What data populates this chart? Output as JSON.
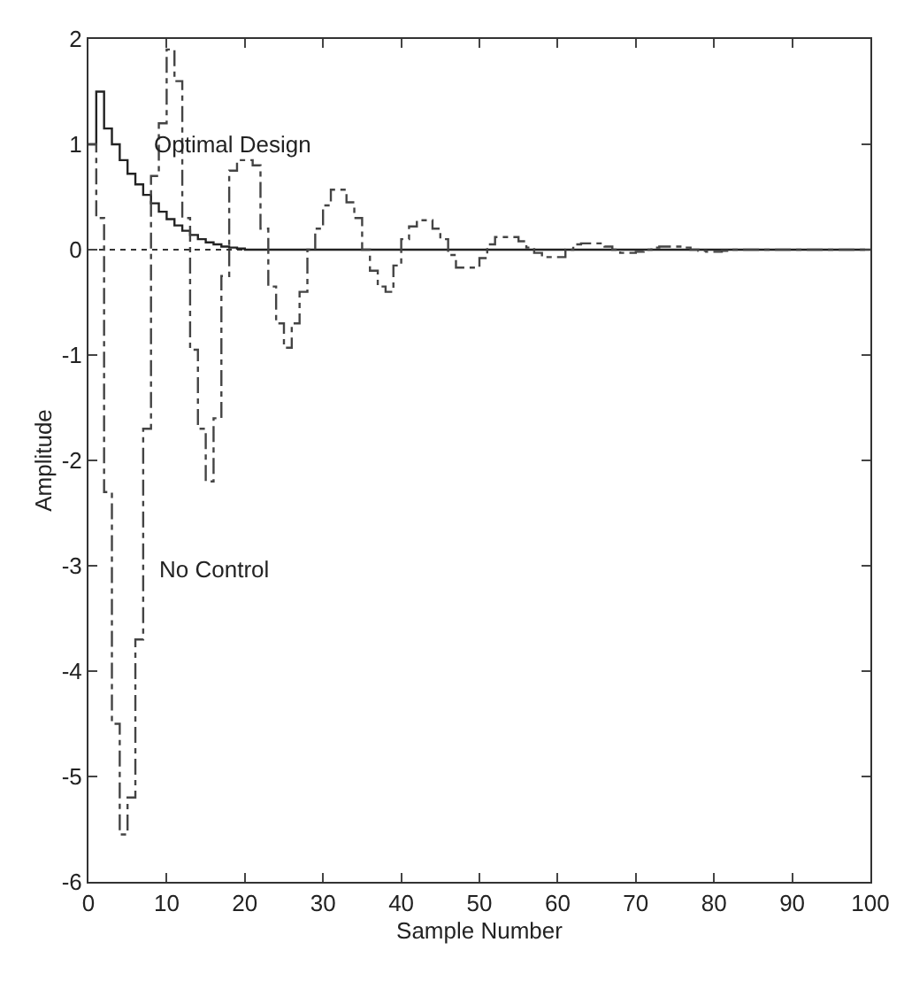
{
  "chart_data": {
    "type": "step",
    "xlabel": "Sample Number",
    "ylabel": "Amplitude",
    "x": [
      0,
      1,
      2,
      3,
      4,
      5,
      6,
      7,
      8,
      9,
      10,
      11,
      12,
      13,
      14,
      15,
      16,
      17,
      18,
      19,
      20,
      21,
      22,
      23,
      24,
      25,
      26,
      27,
      28,
      29,
      30,
      31,
      32,
      33,
      34,
      35,
      36,
      37,
      38,
      39,
      40,
      41,
      42,
      43,
      44,
      45,
      46,
      47,
      48,
      49,
      50,
      51,
      52,
      53,
      54,
      55,
      56,
      57,
      58,
      59,
      60,
      61,
      62,
      63,
      64,
      65,
      66,
      67,
      68,
      69,
      70,
      71,
      72,
      73,
      74,
      75,
      76,
      77,
      78,
      79,
      80,
      81,
      82,
      83,
      84,
      85,
      86,
      87,
      88,
      89,
      90,
      91,
      92,
      93,
      94,
      95,
      96,
      97,
      98,
      99,
      100
    ],
    "series": [
      {
        "color": "#222222",
        "line_style": "solid",
        "values": [
          1.0,
          1.5,
          1.15,
          1.0,
          0.85,
          0.72,
          0.62,
          0.52,
          0.44,
          0.36,
          0.29,
          0.23,
          0.18,
          0.14,
          0.1,
          0.07,
          0.05,
          0.03,
          0.02,
          0.01,
          0,
          0,
          0,
          0,
          0,
          0,
          0,
          0,
          0,
          0,
          0,
          0,
          0,
          0,
          0,
          0,
          0,
          0,
          0,
          0,
          0,
          0,
          0,
          0,
          0,
          0,
          0,
          0,
          0,
          0,
          0,
          0,
          0,
          0,
          0,
          0,
          0,
          0,
          0,
          0,
          0,
          0,
          0,
          0,
          0,
          0,
          0,
          0,
          0,
          0,
          0,
          0,
          0,
          0,
          0,
          0,
          0,
          0,
          0,
          0,
          0,
          0,
          0,
          0,
          0,
          0,
          0,
          0,
          0,
          0,
          0,
          0,
          0,
          0,
          0,
          0,
          0,
          0,
          0,
          0,
          0
        ]
      },
      {
        "color": "#444444",
        "line_style": "dashed",
        "values": [
          1.0,
          0.3,
          -2.3,
          -4.5,
          -5.55,
          -5.2,
          -3.7,
          -1.7,
          0.7,
          1.2,
          1.9,
          1.6,
          0.3,
          -0.95,
          -1.7,
          -2.2,
          -1.6,
          -0.25,
          0.75,
          0.85,
          0.85,
          0.8,
          0.2,
          -0.35,
          -0.7,
          -0.93,
          -0.7,
          -0.4,
          0,
          0.2,
          0.42,
          0.57,
          0.57,
          0.45,
          0.3,
          0,
          -0.2,
          -0.35,
          -0.4,
          -0.15,
          0.1,
          0.22,
          0.28,
          0.28,
          0.2,
          0.1,
          -0.05,
          -0.17,
          -0.17,
          -0.17,
          -0.08,
          0.05,
          0.12,
          0.12,
          0.12,
          0.08,
          0.02,
          -0.03,
          -0.07,
          -0.07,
          -0.07,
          0,
          0.05,
          0.06,
          0.06,
          0.06,
          0.03,
          0,
          -0.03,
          -0.03,
          -0.02,
          0,
          0.02,
          0.03,
          0.03,
          0.03,
          0.02,
          0,
          -0.01,
          -0.02,
          -0.02,
          -0.01,
          0,
          0,
          0,
          0,
          0,
          0,
          0,
          0,
          0,
          0,
          0,
          0,
          0,
          0,
          0,
          0,
          0,
          0,
          0
        ]
      }
    ],
    "xlim": [
      0,
      100
    ],
    "xticks": [
      0,
      10,
      20,
      30,
      40,
      50,
      60,
      70,
      80,
      90,
      100
    ],
    "ylim": [
      -6,
      2
    ],
    "yticks": [
      -6,
      -5,
      -4,
      -3,
      -2,
      -1,
      0,
      1,
      2
    ],
    "ref_lines": [
      {
        "axis": "y",
        "value": 0,
        "line_style": "dotted",
        "color": "#333333"
      }
    ],
    "annotations": [
      "Optimal Design",
      "No Control"
    ],
    "grid": false,
    "marker": "none"
  }
}
